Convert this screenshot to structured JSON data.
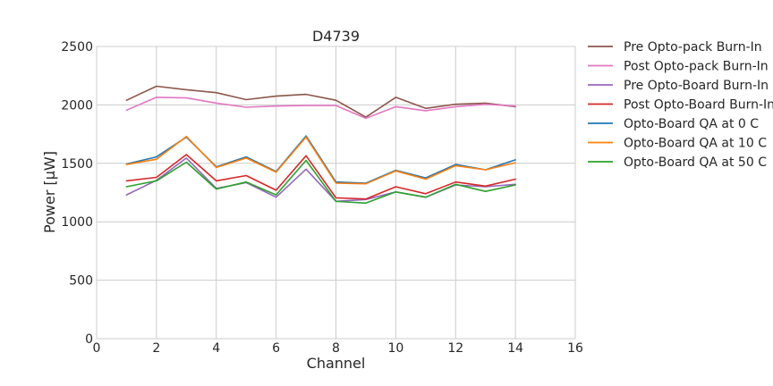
{
  "chart_data": {
    "type": "line",
    "title": "D4739",
    "xlabel": "Channel",
    "ylabel": "Power [μW]",
    "xlim": [
      0,
      16
    ],
    "ylim": [
      0,
      2500
    ],
    "xticks": [
      "0",
      "2",
      "4",
      "6",
      "8",
      "10",
      "12",
      "14",
      "16"
    ],
    "yticks": [
      "0",
      "500",
      "1000",
      "1500",
      "2000",
      "2500"
    ],
    "grid": true,
    "legend_position": "outside-right",
    "x": [
      1,
      2,
      3,
      4,
      5,
      6,
      7,
      8,
      9,
      10,
      11,
      12,
      13,
      14
    ],
    "series": [
      {
        "name": "Pre Opto-pack Burn-In",
        "color": "#8c564b",
        "values": [
          2040,
          2160,
          2130,
          2105,
          2045,
          2075,
          2090,
          2040,
          1895,
          2065,
          1970,
          2005,
          2015,
          1985
        ]
      },
      {
        "name": "Post Opto-pack Burn-In",
        "color": "#e377c2",
        "values": [
          1955,
          2065,
          2060,
          2015,
          1980,
          1990,
          1995,
          1995,
          1885,
          1985,
          1950,
          1985,
          2005,
          1990
        ]
      },
      {
        "name": "Pre Opto-Board Burn-In",
        "color": "#9467bd",
        "values": [
          1230,
          1355,
          1545,
          1285,
          1335,
          1210,
          1450,
          1175,
          1190,
          1255,
          1210,
          1315,
          1300,
          1320
        ]
      },
      {
        "name": "Post Opto-Board Burn-In",
        "color": "#d62728",
        "values": [
          1350,
          1380,
          1575,
          1350,
          1395,
          1270,
          1565,
          1205,
          1195,
          1300,
          1240,
          1340,
          1305,
          1365
        ]
      },
      {
        "name": "Opto-Board QA at 0 C",
        "color": "#1f77b4",
        "values": [
          1495,
          1555,
          1725,
          1470,
          1555,
          1430,
          1735,
          1340,
          1330,
          1440,
          1375,
          1490,
          1445,
          1530
        ]
      },
      {
        "name": "Opto-Board QA at 10 C",
        "color": "#ff7f0e",
        "values": [
          1490,
          1535,
          1730,
          1465,
          1545,
          1425,
          1725,
          1330,
          1325,
          1435,
          1365,
          1480,
          1445,
          1505
        ]
      },
      {
        "name": "Opto-Board QA at 50 C",
        "color": "#2ca02c",
        "values": [
          1300,
          1350,
          1510,
          1280,
          1340,
          1230,
          1525,
          1175,
          1160,
          1255,
          1210,
          1320,
          1260,
          1315
        ]
      }
    ]
  }
}
